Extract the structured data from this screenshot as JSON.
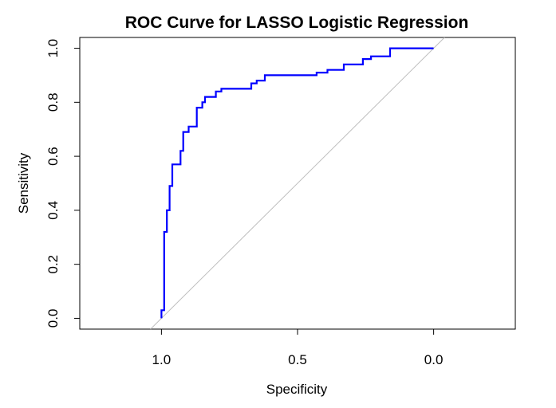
{
  "chart_data": {
    "type": "line",
    "title": "ROC Curve for LASSO Logistic Regression",
    "xlabel": "Specificity",
    "ylabel": "Sensitivity",
    "x_reversed": true,
    "xlim": [
      1.3,
      -0.3
    ],
    "ylim": [
      -0.04,
      1.04
    ],
    "x_ticks": [
      1.0,
      0.5,
      0.0
    ],
    "x_tick_labels": [
      "1.0",
      "0.5",
      "0.0"
    ],
    "y_ticks": [
      0.0,
      0.2,
      0.4,
      0.6,
      0.8,
      1.0
    ],
    "y_tick_labels": [
      "0.0",
      "0.2",
      "0.4",
      "0.6",
      "0.8",
      "1.0"
    ],
    "grid": false,
    "reference_line": {
      "from": [
        1.0,
        0.0
      ],
      "to": [
        0.0,
        1.0
      ],
      "color": "#bebebe"
    },
    "series": [
      {
        "color": "#0000ff",
        "specificity": [
          1.0,
          1.0,
          0.99,
          0.99,
          0.98,
          0.98,
          0.97,
          0.97,
          0.96,
          0.96,
          0.93,
          0.93,
          0.92,
          0.92,
          0.9,
          0.9,
          0.87,
          0.87,
          0.85,
          0.85,
          0.84,
          0.84,
          0.8,
          0.8,
          0.78,
          0.78,
          0.67,
          0.67,
          0.65,
          0.65,
          0.62,
          0.62,
          0.43,
          0.43,
          0.39,
          0.39,
          0.33,
          0.33,
          0.26,
          0.26,
          0.23,
          0.23,
          0.16,
          0.16,
          0.0
        ],
        "sensitivity": [
          0.0,
          0.03,
          0.03,
          0.32,
          0.32,
          0.4,
          0.4,
          0.49,
          0.49,
          0.57,
          0.57,
          0.62,
          0.62,
          0.69,
          0.69,
          0.71,
          0.71,
          0.78,
          0.78,
          0.8,
          0.8,
          0.82,
          0.82,
          0.84,
          0.84,
          0.85,
          0.85,
          0.87,
          0.87,
          0.88,
          0.88,
          0.9,
          0.9,
          0.91,
          0.91,
          0.92,
          0.92,
          0.94,
          0.94,
          0.96,
          0.96,
          0.97,
          0.97,
          1.0,
          1.0
        ]
      }
    ]
  }
}
